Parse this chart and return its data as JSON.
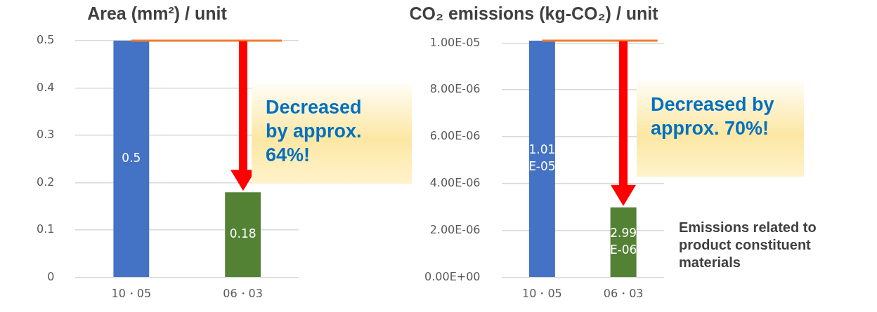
{
  "chart_data": [
    {
      "type": "bar",
      "title": "Area (mm²) / unit",
      "categories": [
        "10・05",
        "06・03"
      ],
      "values": [
        0.5,
        0.18
      ],
      "colors": [
        "#4472c4",
        "#548235"
      ],
      "value_labels": [
        "0.5",
        "0.18"
      ],
      "ylim": [
        0,
        0.5
      ],
      "yticks": [
        0,
        0.1,
        0.2,
        0.3,
        0.4,
        0.5
      ],
      "grid": "y",
      "legend": false,
      "ref_lines": [
        {
          "axis": "y",
          "value": 0.5,
          "color": "#ed7d31"
        }
      ],
      "annotations": [
        "Decreased by approx. 64%!"
      ]
    },
    {
      "type": "bar",
      "title": "CO₂ emissions (kg-CO₂) / unit",
      "categories": [
        "10・05",
        "06・03"
      ],
      "values": [
        1.01e-05,
        2.99e-06
      ],
      "colors": [
        "#4472c4",
        "#548235"
      ],
      "value_labels": [
        "1.01E-05",
        "2.99E-06"
      ],
      "ylim": [
        0,
        1.01e-05
      ],
      "yticks": [
        {
          "value": 0,
          "label": "0.00E+00"
        },
        {
          "value": 2e-06,
          "label": "2.00E-06"
        },
        {
          "value": 4e-06,
          "label": "4.00E-06"
        },
        {
          "value": 6e-06,
          "label": "6.00E-06"
        },
        {
          "value": 8e-06,
          "label": "8.00E-06"
        },
        {
          "value": 1e-05,
          "label": "1.00E-05"
        }
      ],
      "grid": "y",
      "legend": false,
      "ref_lines": [
        {
          "axis": "y",
          "value": 1.01e-05,
          "color": "#ed7d31"
        }
      ],
      "annotations": [
        "Decreased by approx. 70%!",
        "Emissions related to product constituent materials"
      ]
    }
  ]
}
